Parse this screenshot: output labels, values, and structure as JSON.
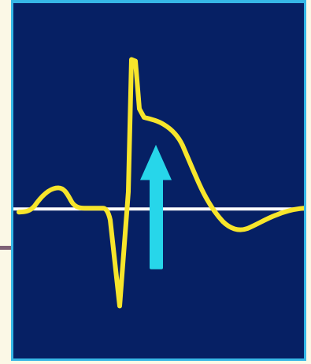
{
  "figure": {
    "description_colors": {
      "background": "#fbf8e6",
      "panel_fill": "#062064",
      "panel_border": "#36b7e6",
      "baseline": "#ffffff",
      "ecg_trace": "#f7e52b",
      "arrow": "#27d6ea",
      "side_line": "#7e6176"
    },
    "icons": {
      "arrow": "up-arrow-icon"
    }
  }
}
